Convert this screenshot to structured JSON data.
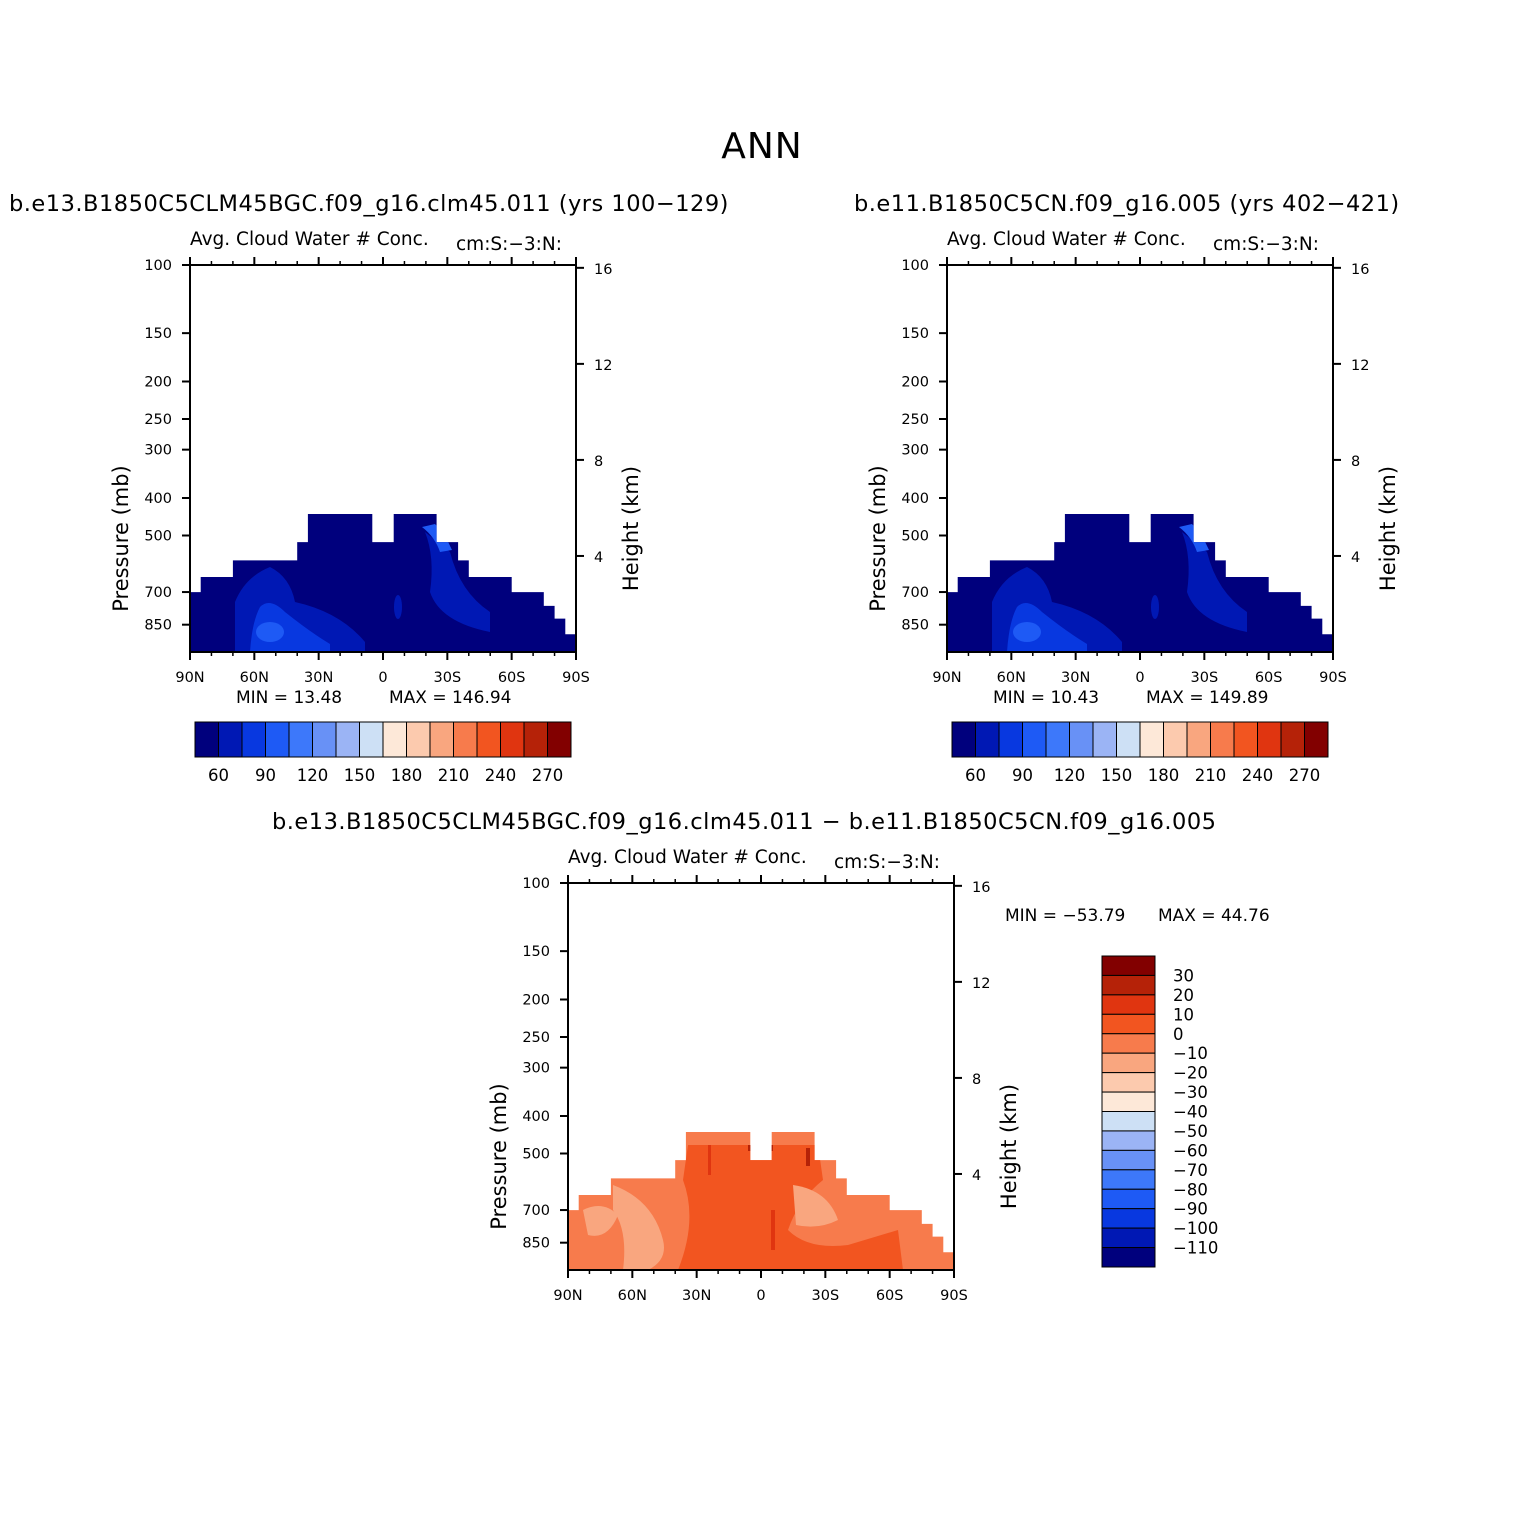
{
  "figure": {
    "title": "ANN"
  },
  "panels": [
    {
      "case_title": "b.e13.B1850C5CLM45BGC.f09_g16.clm45.011 (yrs 100−129)",
      "variable_label": "Avg. Cloud Water # Conc.",
      "units_label": "cm:S:−3:N:",
      "min_label": "MIN =   13.48",
      "max_label": "MAX = 146.94"
    },
    {
      "case_title": "b.e11.B1850C5CN.f09_g16.005 (yrs 402−421)",
      "variable_label": "Avg. Cloud Water # Conc.",
      "units_label": "cm:S:−3:N:",
      "min_label": "MIN =   10.43",
      "max_label": "MAX = 149.89"
    },
    {
      "case_title": "b.e13.B1850C5CLM45BGC.f09_g16.clm45.011 − b.e11.B1850C5CN.f09_g16.005",
      "variable_label": "Avg. Cloud Water # Conc.",
      "units_label": "cm:S:−3:N:",
      "min_label": "MIN = −53.79",
      "max_label": "MAX =   44.76"
    }
  ],
  "axes": {
    "left_label": "Pressure (mb)",
    "right_label": "Height (km)"
  },
  "colorbar_abs": {
    "colors": [
      "#00007d",
      "#0018b4",
      "#0838e0",
      "#1e5af5",
      "#3d78fa",
      "#6891f6",
      "#9bb4f5",
      "#cde0f5",
      "#fde8d8",
      "#fccaae",
      "#f9a67f",
      "#f77b4c",
      "#f25520",
      "#e03510",
      "#b52208",
      "#820000"
    ],
    "tick_labels": [
      "60",
      "90",
      "120",
      "150",
      "180",
      "210",
      "240",
      "270"
    ]
  },
  "colorbar_diff": {
    "colors": [
      "#00007d",
      "#0018b4",
      "#0838e0",
      "#1e5af5",
      "#3d78fa",
      "#6891f6",
      "#9bb4f5",
      "#cde0f5",
      "#fde8d8",
      "#fccaae",
      "#f9a67f",
      "#f77b4c",
      "#f25520",
      "#e03510",
      "#b52208",
      "#820000"
    ],
    "tick_labels": [
      "30",
      "20",
      "10",
      "0",
      "−10",
      "−20",
      "−30",
      "−40",
      "−50",
      "−60",
      "−70",
      "−80",
      "−90",
      "−100",
      "−110"
    ]
  },
  "chart_data": [
    {
      "type": "contour",
      "title": "b.e13.B1850C5CLM45BGC.f09_g16.clm45.011 (yrs 100−129)",
      "xlabel": "",
      "ylabel": "Pressure (mb)",
      "y2label": "Height (km)",
      "x_ticks": [
        "90N",
        "60N",
        "30N",
        "0",
        "30S",
        "60S",
        "90S"
      ],
      "x_tick_values": [
        90,
        60,
        30,
        0,
        -30,
        -60,
        -90
      ],
      "y_ticks": [
        100,
        150,
        200,
        250,
        300,
        400,
        500,
        700,
        850
      ],
      "y_scale": "log",
      "ylim": [
        1000,
        100
      ],
      "y2_ticks": [
        4,
        8,
        12,
        16
      ],
      "min": 13.48,
      "max": 146.94,
      "levels": [
        45,
        60,
        75,
        90,
        105,
        120,
        135,
        150,
        165,
        180,
        195,
        210,
        225,
        240,
        255,
        270
      ],
      "domain_top_pressure_by_lat": {
        "lat": [
          90,
          85,
          80,
          70,
          60,
          50,
          40,
          35,
          10,
          5,
          -5,
          -10,
          -20,
          -25,
          -30,
          -35,
          -40,
          -50,
          -60,
          -70,
          -75,
          -80,
          -85
        ],
        "top_mb": [
          700,
          640,
          640,
          580,
          580,
          580,
          520,
          440,
          440,
          520,
          440,
          440,
          440,
          520,
          520,
          580,
          640,
          640,
          700,
          700,
          760,
          820,
          900
        ]
      },
      "dominant_values": {
        "tropics_deep": 45,
        "lower_midlatitudes": 60,
        "max_regions": [
          75,
          90
        ]
      }
    },
    {
      "type": "contour",
      "title": "b.e11.B1850C5CN.f09_g16.005 (yrs 402−421)",
      "xlabel": "",
      "ylabel": "Pressure (mb)",
      "y2label": "Height (km)",
      "x_ticks": [
        "90N",
        "60N",
        "30N",
        "0",
        "30S",
        "60S",
        "90S"
      ],
      "x_tick_values": [
        90,
        60,
        30,
        0,
        -30,
        -60,
        -90
      ],
      "y_ticks": [
        100,
        150,
        200,
        250,
        300,
        400,
        500,
        700,
        850
      ],
      "y_scale": "log",
      "ylim": [
        1000,
        100
      ],
      "y2_ticks": [
        4,
        8,
        12,
        16
      ],
      "min": 10.43,
      "max": 149.89,
      "levels": [
        45,
        60,
        75,
        90,
        105,
        120,
        135,
        150,
        165,
        180,
        195,
        210,
        225,
        240,
        255,
        270
      ],
      "domain_top_pressure_by_lat": {
        "lat": [
          90,
          85,
          80,
          70,
          60,
          50,
          40,
          35,
          10,
          5,
          -5,
          -10,
          -20,
          -25,
          -30,
          -35,
          -40,
          -50,
          -60,
          -70,
          -75,
          -80,
          -85
        ],
        "top_mb": [
          700,
          640,
          640,
          580,
          580,
          580,
          520,
          440,
          440,
          520,
          440,
          440,
          440,
          520,
          520,
          580,
          640,
          640,
          700,
          700,
          760,
          820,
          900
        ]
      },
      "dominant_values": {
        "tropics_deep": 45,
        "lower_midlatitudes": 60,
        "max_regions": [
          75,
          90
        ]
      }
    },
    {
      "type": "contour",
      "title": "b.e13.B1850C5CLM45BGC.f09_g16.clm45.011 − b.e11.B1850C5CN.f09_g16.005",
      "xlabel": "",
      "ylabel": "Pressure (mb)",
      "y2label": "Height (km)",
      "x_ticks": [
        "90N",
        "60N",
        "30N",
        "0",
        "30S",
        "60S",
        "90S"
      ],
      "x_tick_values": [
        90,
        60,
        30,
        0,
        -30,
        -60,
        -90
      ],
      "y_ticks": [
        100,
        150,
        200,
        250,
        300,
        400,
        500,
        700,
        850
      ],
      "y_scale": "log",
      "ylim": [
        1000,
        100
      ],
      "y2_ticks": [
        4,
        8,
        12,
        16
      ],
      "min": -53.79,
      "max": 44.76,
      "levels": [
        -110,
        -100,
        -90,
        -80,
        -70,
        -60,
        -50,
        -40,
        -30,
        -20,
        -10,
        0,
        10,
        20,
        30
      ],
      "domain_top_pressure_by_lat": {
        "lat": [
          90,
          85,
          80,
          70,
          60,
          50,
          40,
          35,
          10,
          5,
          -5,
          -10,
          -20,
          -25,
          -30,
          -35,
          -40,
          -50,
          -60,
          -70,
          -75,
          -80,
          -85
        ],
        "top_mb": [
          700,
          640,
          640,
          580,
          580,
          580,
          520,
          440,
          440,
          520,
          440,
          440,
          440,
          520,
          520,
          580,
          640,
          640,
          700,
          700,
          760,
          820,
          900
        ]
      },
      "dominant_values": {
        "most_of_domain": [
          -10,
          0
        ],
        "midlatitude_patches": -20,
        "tropical_maxima": [
          10,
          20
        ]
      }
    }
  ]
}
